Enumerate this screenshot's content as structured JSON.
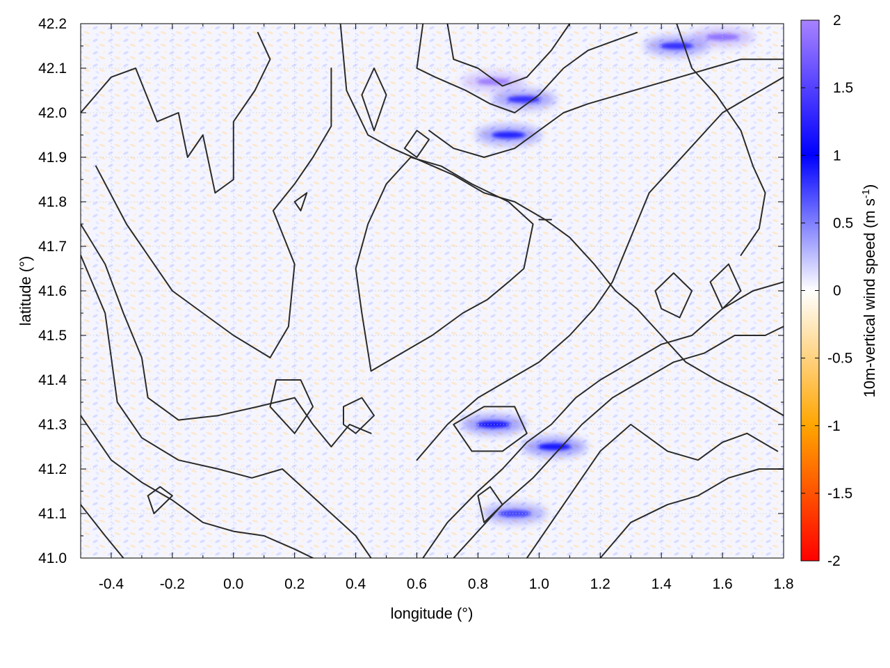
{
  "chart_data": {
    "type": "heatmap",
    "title": "",
    "xlabel": "longitude (°)",
    "ylabel": "latitude (°)",
    "colorbar_label": "10m-vertical wind speed (m s",
    "colorbar_unit_exp": "-1",
    "colorbar_unit_close": ")",
    "xlim": [
      -0.5,
      1.8
    ],
    "ylim": [
      41.0,
      42.2
    ],
    "x_ticks": [
      -0.4,
      -0.2,
      0.0,
      0.2,
      0.4,
      0.6,
      0.8,
      1.0,
      1.2,
      1.4,
      1.6,
      1.8
    ],
    "x_tick_labels": [
      "-0.4",
      "-0.2",
      "0.0",
      "0.2",
      "0.4",
      "0.6",
      "0.8",
      "1.0",
      "1.2",
      "1.4",
      "1.6",
      "1.8"
    ],
    "y_ticks": [
      41.0,
      41.1,
      41.2,
      41.3,
      41.4,
      41.5,
      41.6,
      41.7,
      41.8,
      41.9,
      42.0,
      42.1,
      42.2
    ],
    "y_tick_labels": [
      "41.0",
      "41.1",
      "41.2",
      "41.3",
      "41.4",
      "41.5",
      "41.6",
      "41.7",
      "41.8",
      "41.9",
      "42.0",
      "42.1",
      "42.2"
    ],
    "colorbar_range": [
      -2,
      2
    ],
    "colorbar_ticks": [
      -2,
      -1.5,
      -1,
      -0.5,
      0,
      0.5,
      1,
      1.5,
      2
    ],
    "colorbar_tick_labels": [
      "-2",
      "-1.5",
      "-1",
      "-0.5",
      "0",
      "0.5",
      "1",
      "1.5",
      "2"
    ],
    "colormap": [
      {
        "value": -2,
        "color": "#ff0000"
      },
      {
        "value": -1,
        "color": "#ffa500"
      },
      {
        "value": 0,
        "color": "#ffffff"
      },
      {
        "value": 1,
        "color": "#0000ff"
      },
      {
        "value": 2,
        "color": "#a782ff"
      }
    ],
    "grid": true,
    "contour_color": "#2a2a2a",
    "strong_updrafts": [
      {
        "lon": 0.85,
        "lat": 42.07,
        "value": 1.9
      },
      {
        "lon": 0.95,
        "lat": 42.03,
        "value": 1.2
      },
      {
        "lon": 0.9,
        "lat": 41.95,
        "value": 1.1
      },
      {
        "lon": 1.45,
        "lat": 42.15,
        "value": 1.2
      },
      {
        "lon": 1.6,
        "lat": 42.17,
        "value": 1.8
      },
      {
        "lon": 1.05,
        "lat": 41.25,
        "value": 1.0
      },
      {
        "lon": 0.85,
        "lat": 41.3,
        "value": 1.0
      },
      {
        "lon": 0.92,
        "lat": 41.1,
        "value": 0.8
      }
    ],
    "contours": [
      [
        [
          -0.5,
          42.0
        ],
        [
          -0.4,
          42.08
        ],
        [
          -0.32,
          42.1
        ],
        [
          -0.25,
          41.98
        ],
        [
          -0.18,
          42.0
        ],
        [
          -0.15,
          41.9
        ],
        [
          -0.1,
          41.95
        ],
        [
          -0.06,
          41.82
        ],
        [
          0.0,
          41.85
        ],
        [
          0.0,
          41.98
        ],
        [
          0.07,
          42.05
        ],
        [
          0.12,
          42.12
        ],
        [
          0.08,
          42.18
        ]
      ],
      [
        [
          -0.45,
          41.88
        ],
        [
          -0.35,
          41.75
        ],
        [
          -0.28,
          41.68
        ],
        [
          -0.2,
          41.6
        ],
        [
          -0.1,
          41.55
        ],
        [
          0.0,
          41.5
        ],
        [
          0.12,
          41.45
        ],
        [
          0.18,
          41.52
        ],
        [
          0.2,
          41.66
        ],
        [
          0.13,
          41.78
        ],
        [
          0.2,
          41.84
        ],
        [
          0.26,
          41.9
        ],
        [
          0.32,
          41.97
        ],
        [
          0.32,
          42.1
        ]
      ],
      [
        [
          -0.5,
          41.75
        ],
        [
          -0.42,
          41.66
        ],
        [
          -0.36,
          41.55
        ],
        [
          -0.3,
          41.45
        ],
        [
          -0.28,
          41.36
        ],
        [
          -0.18,
          41.31
        ],
        [
          -0.05,
          41.32
        ],
        [
          0.08,
          41.34
        ],
        [
          0.2,
          41.36
        ],
        [
          0.26,
          41.3
        ],
        [
          0.32,
          41.25
        ],
        [
          0.38,
          41.3
        ],
        [
          0.45,
          41.28
        ]
      ],
      [
        [
          -0.5,
          41.68
        ],
        [
          -0.42,
          41.55
        ],
        [
          -0.4,
          41.45
        ],
        [
          -0.38,
          41.35
        ],
        [
          -0.3,
          41.27
        ],
        [
          -0.18,
          41.22
        ],
        [
          -0.05,
          41.2
        ],
        [
          0.06,
          41.18
        ],
        [
          0.16,
          41.2
        ],
        [
          0.24,
          41.15
        ],
        [
          0.32,
          41.1
        ],
        [
          0.4,
          41.05
        ],
        [
          0.45,
          41.0
        ]
      ],
      [
        [
          -0.5,
          41.32
        ],
        [
          -0.4,
          41.22
        ],
        [
          -0.3,
          41.17
        ],
        [
          -0.2,
          41.13
        ],
        [
          -0.1,
          41.08
        ],
        [
          0.0,
          41.06
        ],
        [
          0.1,
          41.05
        ],
        [
          0.2,
          41.02
        ],
        [
          0.26,
          41.0
        ]
      ],
      [
        [
          -0.5,
          41.12
        ],
        [
          -0.42,
          41.05
        ],
        [
          -0.36,
          41.0
        ]
      ],
      [
        [
          0.35,
          42.2
        ],
        [
          0.37,
          42.05
        ],
        [
          0.44,
          41.95
        ],
        [
          0.52,
          41.92
        ],
        [
          0.62,
          41.89
        ],
        [
          0.72,
          41.86
        ],
        [
          0.82,
          41.82
        ],
        [
          0.92,
          41.8
        ],
        [
          1.02,
          41.76
        ],
        [
          1.1,
          41.72
        ],
        [
          1.18,
          41.66
        ],
        [
          1.25,
          41.6
        ],
        [
          1.32,
          41.56
        ],
        [
          1.4,
          41.5
        ],
        [
          1.48,
          41.44
        ],
        [
          1.58,
          41.4
        ],
        [
          1.7,
          41.36
        ],
        [
          1.8,
          41.32
        ]
      ],
      [
        [
          0.45,
          41.42
        ],
        [
          0.55,
          41.46
        ],
        [
          0.65,
          41.5
        ],
        [
          0.75,
          41.55
        ],
        [
          0.83,
          41.58
        ],
        [
          0.9,
          41.62
        ],
        [
          0.95,
          41.65
        ],
        [
          0.98,
          41.75
        ],
        [
          0.9,
          41.8
        ],
        [
          0.78,
          41.84
        ],
        [
          0.68,
          41.88
        ],
        [
          0.58,
          41.9
        ],
        [
          0.5,
          41.84
        ],
        [
          0.44,
          41.75
        ],
        [
          0.4,
          41.65
        ],
        [
          0.42,
          41.55
        ],
        [
          0.45,
          41.42
        ]
      ],
      [
        [
          0.6,
          41.22
        ],
        [
          0.7,
          41.3
        ],
        [
          0.8,
          41.36
        ],
        [
          0.9,
          41.4
        ],
        [
          1.0,
          41.44
        ],
        [
          1.1,
          41.5
        ],
        [
          1.18,
          41.56
        ],
        [
          1.24,
          41.62
        ],
        [
          1.3,
          41.72
        ],
        [
          1.36,
          41.82
        ],
        [
          1.44,
          41.88
        ],
        [
          1.52,
          41.94
        ],
        [
          1.6,
          42.0
        ],
        [
          1.7,
          42.04
        ],
        [
          1.8,
          42.08
        ]
      ],
      [
        [
          0.62,
          41.0
        ],
        [
          0.7,
          41.08
        ],
        [
          0.8,
          41.15
        ],
        [
          0.88,
          41.2
        ],
        [
          0.96,
          41.26
        ],
        [
          1.04,
          41.3
        ],
        [
          1.12,
          41.36
        ],
        [
          1.2,
          41.4
        ],
        [
          1.3,
          41.44
        ],
        [
          1.4,
          41.48
        ],
        [
          1.5,
          41.5
        ],
        [
          1.6,
          41.56
        ],
        [
          1.7,
          41.6
        ],
        [
          1.8,
          41.62
        ]
      ],
      [
        [
          0.72,
          41.0
        ],
        [
          0.8,
          41.06
        ],
        [
          0.88,
          41.12
        ],
        [
          0.98,
          41.18
        ],
        [
          1.06,
          41.24
        ],
        [
          1.14,
          41.3
        ],
        [
          1.24,
          41.36
        ],
        [
          1.34,
          41.4
        ],
        [
          1.44,
          41.44
        ],
        [
          1.54,
          41.46
        ],
        [
          1.64,
          41.5
        ],
        [
          1.74,
          41.5
        ],
        [
          1.8,
          41.52
        ]
      ],
      [
        [
          0.96,
          41.0
        ],
        [
          1.04,
          41.08
        ],
        [
          1.12,
          41.16
        ],
        [
          1.2,
          41.24
        ],
        [
          1.3,
          41.3
        ],
        [
          1.42,
          41.24
        ],
        [
          1.52,
          41.22
        ],
        [
          1.6,
          41.26
        ],
        [
          1.68,
          41.28
        ],
        [
          1.78,
          41.24
        ]
      ],
      [
        [
          1.2,
          41.0
        ],
        [
          1.3,
          41.08
        ],
        [
          1.42,
          41.12
        ],
        [
          1.52,
          41.14
        ],
        [
          1.62,
          41.18
        ],
        [
          1.72,
          41.2
        ],
        [
          1.8,
          41.2
        ]
      ],
      [
        [
          0.62,
          42.2
        ],
        [
          0.6,
          42.1
        ],
        [
          0.66,
          42.08
        ],
        [
          0.76,
          42.05
        ],
        [
          0.84,
          42.02
        ],
        [
          0.92,
          42.0
        ],
        [
          1.0,
          42.04
        ],
        [
          1.08,
          42.1
        ],
        [
          1.16,
          42.14
        ],
        [
          1.24,
          42.16
        ],
        [
          1.32,
          42.18
        ]
      ],
      [
        [
          0.7,
          42.2
        ],
        [
          0.72,
          42.12
        ],
        [
          0.8,
          42.1
        ],
        [
          0.88,
          42.06
        ],
        [
          0.96,
          42.08
        ],
        [
          1.04,
          42.14
        ],
        [
          1.1,
          42.2
        ]
      ],
      [
        [
          0.64,
          41.96
        ],
        [
          0.72,
          41.92
        ],
        [
          0.82,
          41.9
        ],
        [
          0.92,
          41.92
        ],
        [
          1.0,
          41.96
        ],
        [
          1.08,
          42.0
        ],
        [
          1.16,
          42.02
        ],
        [
          1.26,
          42.04
        ],
        [
          1.36,
          42.06
        ],
        [
          1.46,
          42.08
        ],
        [
          1.56,
          42.1
        ],
        [
          1.66,
          42.12
        ],
        [
          1.76,
          42.12
        ],
        [
          1.8,
          42.12
        ]
      ],
      [
        [
          1.45,
          42.2
        ],
        [
          1.5,
          42.1
        ],
        [
          1.58,
          42.04
        ],
        [
          1.66,
          41.96
        ],
        [
          1.7,
          41.88
        ],
        [
          1.74,
          41.82
        ],
        [
          1.72,
          41.74
        ],
        [
          1.66,
          41.68
        ]
      ],
      [
        [
          0.2,
          41.28
        ],
        [
          0.26,
          41.34
        ],
        [
          0.22,
          41.4
        ],
        [
          0.14,
          41.4
        ],
        [
          0.12,
          41.34
        ],
        [
          0.2,
          41.28
        ]
      ],
      [
        [
          0.4,
          41.28
        ],
        [
          0.46,
          41.32
        ],
        [
          0.42,
          41.36
        ],
        [
          0.36,
          41.34
        ],
        [
          0.36,
          41.3
        ],
        [
          0.4,
          41.28
        ]
      ],
      [
        [
          0.82,
          41.08
        ],
        [
          0.88,
          41.12
        ],
        [
          0.84,
          41.16
        ],
        [
          0.8,
          41.14
        ],
        [
          0.82,
          41.08
        ]
      ],
      [
        [
          -0.26,
          41.1
        ],
        [
          -0.2,
          41.14
        ],
        [
          -0.24,
          41.16
        ],
        [
          -0.28,
          41.14
        ],
        [
          -0.26,
          41.1
        ]
      ],
      [
        [
          0.72,
          41.3
        ],
        [
          0.82,
          41.34
        ],
        [
          0.92,
          41.34
        ],
        [
          0.96,
          41.28
        ],
        [
          0.88,
          41.24
        ],
        [
          0.78,
          41.24
        ],
        [
          0.72,
          41.3
        ]
      ],
      [
        [
          1.38,
          41.6
        ],
        [
          1.44,
          41.64
        ],
        [
          1.5,
          41.6
        ],
        [
          1.46,
          41.54
        ],
        [
          1.4,
          41.56
        ],
        [
          1.38,
          41.6
        ]
      ],
      [
        [
          1.56,
          41.62
        ],
        [
          1.62,
          41.66
        ],
        [
          1.66,
          41.6
        ],
        [
          1.6,
          41.56
        ],
        [
          1.56,
          41.62
        ]
      ],
      [
        [
          0.2,
          41.8
        ],
        [
          0.24,
          41.82
        ],
        [
          0.22,
          41.78
        ],
        [
          0.2,
          41.8
        ]
      ],
      [
        [
          1.0,
          41.76
        ],
        [
          1.04,
          41.76
        ]
      ],
      [
        [
          0.46,
          41.96
        ],
        [
          0.5,
          42.04
        ],
        [
          0.46,
          42.1
        ],
        [
          0.42,
          42.04
        ],
        [
          0.46,
          41.96
        ]
      ],
      [
        [
          0.56,
          41.92
        ],
        [
          0.6,
          41.96
        ],
        [
          0.64,
          41.94
        ],
        [
          0.6,
          41.9
        ],
        [
          0.56,
          41.92
        ]
      ]
    ]
  }
}
